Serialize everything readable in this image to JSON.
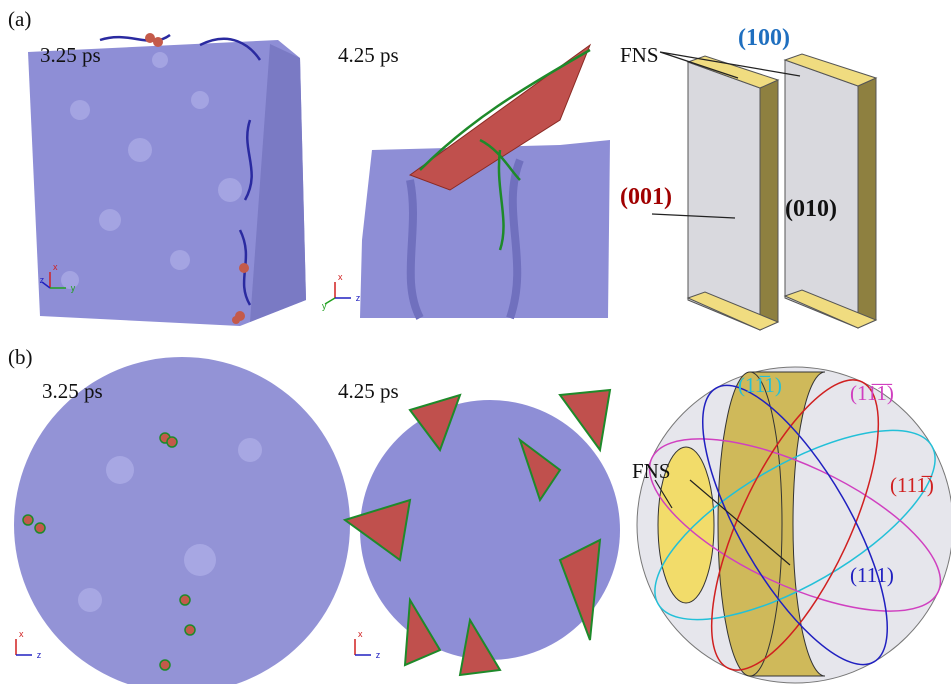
{
  "panel_a": {
    "label": "(a)",
    "snapshots": [
      {
        "time": "3.25 ps",
        "axes": [
          "x",
          "z",
          "y"
        ]
      },
      {
        "time": "4.25 ps",
        "axes": [
          "x",
          "y",
          "z"
        ]
      }
    ],
    "diagram": {
      "fns": "FNS",
      "planes": [
        "(100)",
        "(001)",
        "(010)"
      ]
    }
  },
  "panel_b": {
    "label": "(b)",
    "snapshots": [
      {
        "time": "3.25 ps",
        "axes": [
          "x",
          "z"
        ]
      },
      {
        "time": "4.25 ps",
        "axes": [
          "x",
          "z"
        ]
      }
    ],
    "diagram": {
      "fns": "FNS",
      "planes": [
        "(11̅1)",
        "(11̅1̅)",
        "(111̅)",
        "(111)"
      ]
    }
  }
}
